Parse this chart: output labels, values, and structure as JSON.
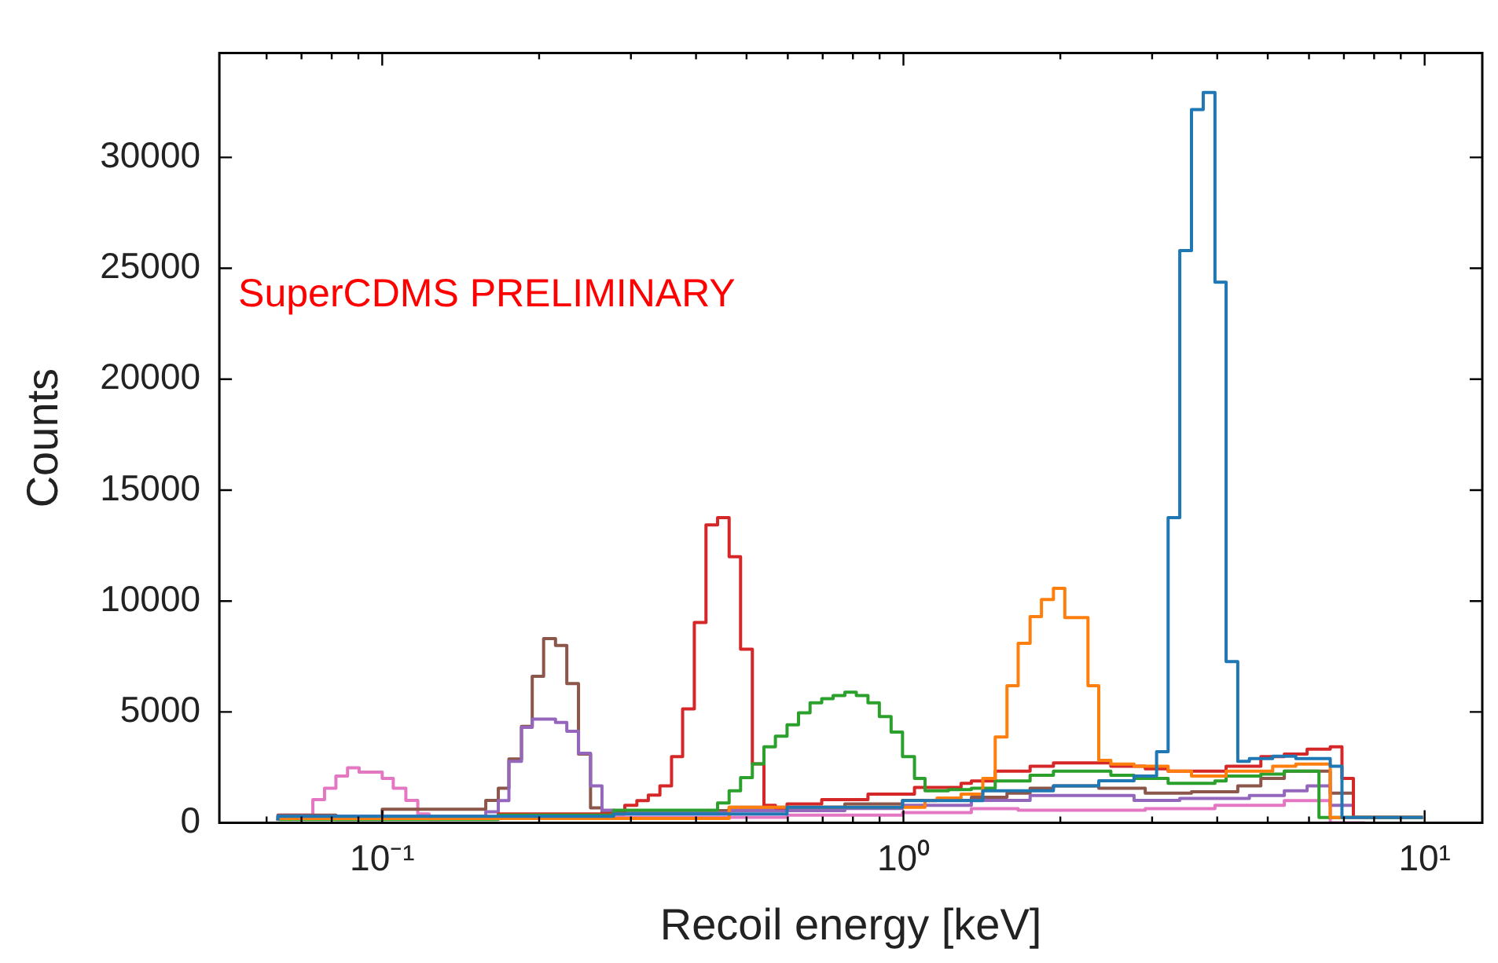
{
  "chart_data": {
    "type": "step",
    "xlabel": "Recoil energy [keV]",
    "ylabel": "Counts",
    "annotations": [
      "SuperCDMS PRELIMINARY"
    ],
    "log": "x",
    "grid": false,
    "legend": false,
    "xlim": [
      0.0487,
      12.9
    ],
    "ylim": [
      0,
      34700
    ],
    "xticks": [
      {
        "value": 0.06,
        "label": null
      },
      {
        "value": 0.07,
        "label": null
      },
      {
        "value": 0.08,
        "label": null
      },
      {
        "value": 0.09,
        "label": null
      },
      {
        "value": 0.1,
        "label": "10⁻¹"
      },
      {
        "value": 0.2,
        "label": null
      },
      {
        "value": 0.3,
        "label": null
      },
      {
        "value": 0.4,
        "label": null
      },
      {
        "value": 0.5,
        "label": null
      },
      {
        "value": 0.6,
        "label": null
      },
      {
        "value": 0.7,
        "label": null
      },
      {
        "value": 0.8,
        "label": null
      },
      {
        "value": 0.9,
        "label": null
      },
      {
        "value": 1,
        "label": "10⁰"
      },
      {
        "value": 2,
        "label": null
      },
      {
        "value": 3,
        "label": null
      },
      {
        "value": 4,
        "label": null
      },
      {
        "value": 5,
        "label": null
      },
      {
        "value": 6,
        "label": null
      },
      {
        "value": 7,
        "label": null
      },
      {
        "value": 8,
        "label": null
      },
      {
        "value": 9,
        "label": null
      },
      {
        "value": 10,
        "label": "10¹"
      }
    ],
    "yticks": [
      0,
      5000,
      10000,
      15000,
      20000,
      25000,
      30000
    ],
    "series": [
      {
        "color": "#1f77b4",
        "x": [
          0.0631,
          0.278,
          0.598,
          0.996,
          1.42,
          1.94,
          2.37,
          2.77,
          3.06,
          3.22,
          3.39,
          3.57,
          3.76,
          3.96,
          4.16,
          4.38,
          4.61,
          5.11,
          5.66,
          6.59,
          6.94,
          7.3,
          9.92
        ],
        "values": [
          100,
          300,
          400,
          700,
          1000,
          1450,
          1670,
          1900,
          2110,
          3210,
          13760,
          25800,
          32150,
          32920,
          24370,
          7270,
          2770,
          2900,
          3000,
          2900,
          2550,
          240,
          240
        ]
      },
      {
        "color": "#ff7f0e",
        "x": [
          0.0631,
          0.463,
          1.1,
          1.16,
          1.29,
          1.42,
          1.5,
          1.58,
          1.66,
          1.75,
          1.84,
          1.94,
          2.04,
          2.26,
          2.37,
          2.5,
          2.77,
          3.22,
          3.57,
          4.16,
          5.11,
          5.66,
          6.59,
          7.3,
          9.92
        ],
        "values": [
          100,
          200,
          700,
          1000,
          1120,
          1300,
          2000,
          3870,
          6180,
          8090,
          9300,
          10070,
          10570,
          9250,
          6180,
          2820,
          2650,
          2550,
          2330,
          2110,
          2330,
          2550,
          2650,
          240,
          240
        ]
      },
      {
        "color": "#2ca02c",
        "x": [
          0.0631,
          0.167,
          0.278,
          0.44,
          0.463,
          0.487,
          0.513,
          0.54,
          0.568,
          0.598,
          0.629,
          0.662,
          0.697,
          0.733,
          0.772,
          0.812,
          0.855,
          0.899,
          0.947,
          0.996,
          1.05,
          1.1,
          1.16,
          1.22,
          1.35,
          1.5,
          1.75,
          1.94,
          2.14,
          2.5,
          2.77,
          3.22,
          3.57,
          3.96,
          4.16,
          4.85,
          5.38,
          6.27,
          7.3,
          9.92
        ],
        "values": [
          100,
          150,
          350,
          570,
          900,
          1450,
          2040,
          2660,
          3430,
          3910,
          4420,
          4960,
          5410,
          5600,
          5740,
          5890,
          5740,
          5410,
          4790,
          4090,
          2990,
          2000,
          1450,
          1450,
          1500,
          1560,
          1890,
          2150,
          2330,
          2330,
          2150,
          2000,
          1780,
          1780,
          1890,
          2110,
          2200,
          2330,
          240,
          240
        ]
      },
      {
        "color": "#d62728",
        "x": [
          0.0631,
          0.167,
          0.292,
          0.308,
          0.324,
          0.341,
          0.359,
          0.377,
          0.397,
          0.418,
          0.44,
          0.463,
          0.487,
          0.513,
          0.54,
          0.568,
          0.598,
          0.697,
          0.855,
          1.05,
          1.29,
          1.35,
          1.5,
          1.75,
          1.94,
          2.14,
          2.5,
          2.91,
          3.22,
          3.57,
          4.16,
          4.85,
          5.38,
          5.95,
          6.59,
          6.94,
          7.3,
          7.69,
          9.92
        ],
        "values": [
          100,
          200,
          400,
          790,
          1000,
          1250,
          1670,
          2990,
          5140,
          9030,
          13430,
          13760,
          12000,
          7830,
          2660,
          790,
          680,
          850,
          1050,
          1300,
          1600,
          1780,
          1890,
          2330,
          2550,
          2700,
          2700,
          2550,
          2440,
          2330,
          2330,
          2550,
          2990,
          3100,
          3320,
          3430,
          2000,
          240,
          240
        ]
      },
      {
        "color": "#9467bd",
        "x": [
          0.0631,
          0.158,
          0.167,
          0.175,
          0.185,
          0.194,
          0.204,
          0.215,
          0.226,
          0.238,
          0.251,
          0.264,
          0.278,
          0.292,
          0.463,
          0.772,
          0.996,
          1.35,
          1.75,
          2.04,
          2.77,
          3.39,
          4.61,
          5.38,
          5.95,
          6.59,
          7.3,
          7.69,
          9.92
        ],
        "values": [
          100,
          300,
          500,
          1000,
          2770,
          4310,
          4680,
          4680,
          4530,
          4130,
          3140,
          1670,
          570,
          400,
          450,
          550,
          650,
          790,
          1010,
          1230,
          1230,
          1010,
          1100,
          1230,
          1450,
          1670,
          790,
          240,
          240
        ]
      },
      {
        "color": "#8c564b",
        "x": [
          0.0631,
          0.0815,
          0.1,
          0.158,
          0.167,
          0.175,
          0.185,
          0.194,
          0.204,
          0.215,
          0.226,
          0.238,
          0.251,
          0.264,
          0.278,
          0.463,
          0.772,
          0.996,
          1.35,
          1.58,
          1.75,
          1.94,
          2.37,
          2.91,
          3.57,
          4.38,
          4.85,
          5.38,
          6.59,
          7.3,
          7.69,
          9.92
        ],
        "values": [
          100,
          350,
          150,
          610,
          1010,
          1560,
          2880,
          4350,
          6610,
          8310,
          8000,
          6280,
          3100,
          680,
          450,
          550,
          700,
          850,
          1010,
          1150,
          1340,
          1560,
          1670,
          1560,
          1340,
          1400,
          1670,
          2000,
          2330,
          1340,
          240,
          240
        ]
      },
      {
        "color": "#e377c2",
        "x": [
          0.0631,
          0.0736,
          0.0775,
          0.0815,
          0.0858,
          0.0903,
          0.1,
          0.105,
          0.111,
          0.117,
          0.123,
          0.129,
          0.598,
          0.996,
          1.35,
          1.66,
          2.91,
          3.96,
          5.38,
          6.59,
          7.69
        ],
        "values": [
          150,
          350,
          1050,
          1560,
          2110,
          2480,
          2290,
          2000,
          1560,
          1010,
          400,
          150,
          250,
          350,
          460,
          640,
          570,
          640,
          790,
          1000,
          0
        ]
      }
    ]
  }
}
